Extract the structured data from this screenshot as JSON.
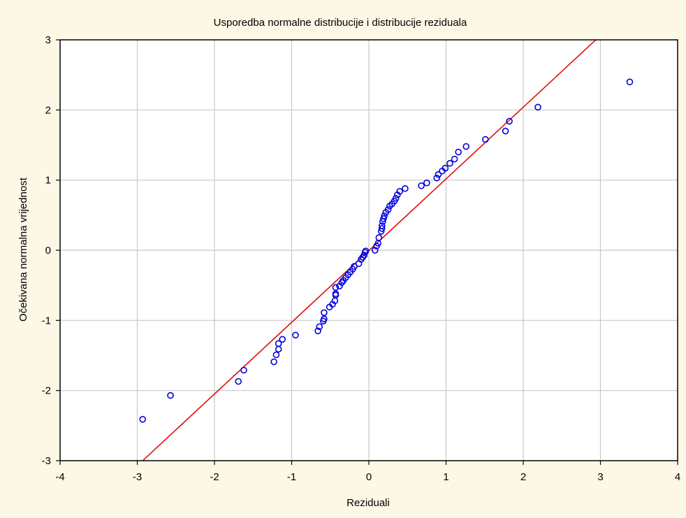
{
  "chart_data": {
    "type": "scatter",
    "title": "Usporedba normalne distribucije i distribucije reziduala",
    "xlabel": "Reziduali",
    "ylabel": "Očekivana normalna vrijednost",
    "xlim": [
      -4,
      4
    ],
    "ylim": [
      -3,
      3
    ],
    "xticks": [
      "-4",
      "-3",
      "-2",
      "-1",
      "0",
      "1",
      "2",
      "3",
      "4"
    ],
    "yticks": [
      "-3",
      "-2",
      "-1",
      "0",
      "1",
      "2",
      "3"
    ],
    "grid": true,
    "legend": "none",
    "colors": {
      "background": "#fdf7e5",
      "plot_area": "#ffffff",
      "grid": "#c8c8c8",
      "points": "#0000e0",
      "reference_line": "#e00000"
    },
    "reference_line": {
      "x": [
        -2.93,
        2.94
      ],
      "y": [
        -3.0,
        3.0
      ]
    },
    "points": {
      "x": [
        -2.93,
        -2.57,
        -1.69,
        -1.62,
        -1.23,
        -1.2,
        -1.17,
        -1.17,
        -1.12,
        -0.95,
        -0.66,
        -0.64,
        -0.59,
        -0.58,
        -0.58,
        -0.51,
        -0.47,
        -0.44,
        -0.43,
        -0.43,
        -0.43,
        -0.38,
        -0.35,
        -0.33,
        -0.3,
        -0.27,
        -0.24,
        -0.21,
        -0.19,
        -0.13,
        -0.1,
        -0.08,
        -0.06,
        -0.05,
        -0.04,
        0.08,
        0.1,
        0.12,
        0.13,
        0.16,
        0.17,
        0.17,
        0.18,
        0.19,
        0.2,
        0.22,
        0.25,
        0.27,
        0.3,
        0.33,
        0.35,
        0.37,
        0.4,
        0.47,
        0.68,
        0.75,
        0.88,
        0.9,
        0.95,
        0.99,
        1.05,
        1.11,
        1.16,
        1.26,
        1.51,
        1.77,
        1.82,
        2.19,
        3.38
      ],
      "y": [
        -2.41,
        -2.07,
        -1.87,
        -1.71,
        -1.59,
        -1.49,
        -1.41,
        -1.33,
        -1.27,
        -1.21,
        -1.15,
        -1.09,
        -1.01,
        -0.98,
        -0.89,
        -0.81,
        -0.77,
        -0.72,
        -0.64,
        -0.62,
        -0.53,
        -0.51,
        -0.46,
        -0.43,
        -0.39,
        -0.35,
        -0.31,
        -0.27,
        -0.23,
        -0.19,
        -0.13,
        -0.1,
        -0.07,
        -0.03,
        -0.01,
        0.0,
        0.06,
        0.1,
        0.18,
        0.27,
        0.31,
        0.35,
        0.41,
        0.45,
        0.49,
        0.54,
        0.58,
        0.63,
        0.66,
        0.7,
        0.74,
        0.79,
        0.84,
        0.88,
        0.92,
        0.96,
        1.03,
        1.08,
        1.13,
        1.17,
        1.24,
        1.3,
        1.4,
        1.48,
        1.58,
        1.7,
        1.84,
        2.04,
        2.4
      ]
    }
  }
}
